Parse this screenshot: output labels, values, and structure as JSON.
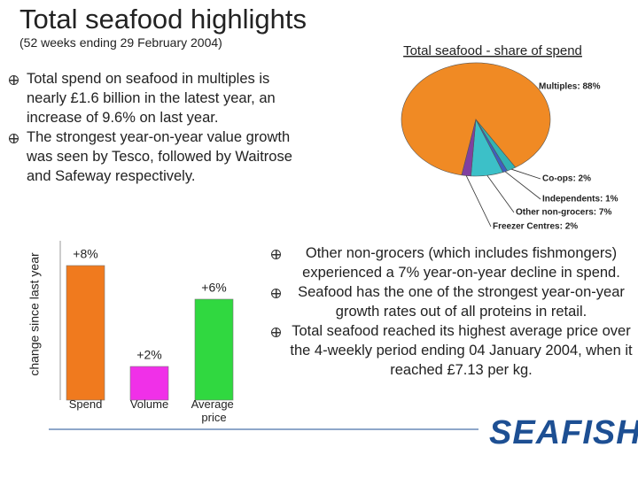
{
  "header": {
    "title": "Total seafood highlights",
    "subtitle": "(52 weeks ending 29 February 2004)"
  },
  "bullets_left": [
    "Total spend on seafood in multiples is nearly £1.6 billion in the latest year, an increase of 9.6% on last year.",
    "The strongest year-on-year value growth was seen by Tesco, followed by Waitrose and Safeway respectively."
  ],
  "bullets_right": [
    "Other non-grocers (which includes fishmongers) experienced a 7% year-on-year decline in spend.",
    "Seafood has the one of the strongest year-on-year growth rates out of all proteins in retail.",
    "Total seafood reached its highest average price over the 4-weekly period ending 04 January 2004, when it reached £7.13 per kg."
  ],
  "logo": {
    "text": "SEAFISH"
  },
  "chart_data": [
    {
      "type": "pie",
      "title": "Total seafood - share of spend",
      "values": [
        88,
        2,
        1,
        7,
        2
      ],
      "value_labels": [
        "Multiples: 88%",
        "Co-ops: 2%",
        "Independents: 1%",
        "Other non-grocers: 7%",
        "Freezer Centres: 2%"
      ],
      "colors": [
        "#f08a24",
        "#33b3b3",
        "#3f5fbf",
        "#3cc0c8",
        "#8040a0"
      ]
    },
    {
      "type": "bar",
      "y_label": "change since last year",
      "categories": [
        "Spend",
        "Volume",
        "Average price"
      ],
      "values": [
        8,
        2,
        6
      ],
      "value_labels": [
        "+8%",
        "+2%",
        "+6%"
      ],
      "colors": [
        "#f07a1e",
        "#f030e8",
        "#30d840"
      ],
      "ylim": [
        0,
        8
      ]
    }
  ]
}
